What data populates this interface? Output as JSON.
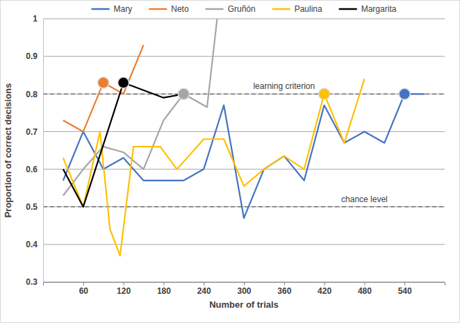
{
  "chart_data": {
    "type": "line",
    "x_label": "Number of trials",
    "y_label": "Proportion of correct decisions",
    "xlim": [
      0,
      600
    ],
    "xticks": [
      60,
      120,
      180,
      240,
      300,
      360,
      420,
      480,
      540
    ],
    "ylim": [
      0.3,
      1
    ],
    "yticks": [
      0.3,
      0.4,
      0.5,
      0.6,
      0.7,
      0.8,
      0.9,
      1
    ],
    "grid": true,
    "legend": "top",
    "series": [
      {
        "name": "Mary",
        "color": "#4472c4",
        "x": [
          30,
          60,
          90,
          120,
          150,
          180,
          210,
          240,
          270,
          300,
          330,
          360,
          390,
          420,
          450,
          480,
          510,
          540,
          570
        ],
        "values": [
          0.57,
          0.7,
          0.6,
          0.63,
          0.57,
          0.57,
          0.57,
          0.6,
          0.77,
          0.47,
          0.6,
          0.635,
          0.57,
          0.77,
          0.67,
          0.7,
          0.67,
          0.8,
          0.8
        ],
        "criterion": {
          "x": 540,
          "y": 0.8
        }
      },
      {
        "name": "Neto",
        "color": "#ed7d31",
        "x": [
          30,
          60,
          90,
          120,
          150
        ],
        "values": [
          0.73,
          0.7,
          0.83,
          0.8,
          0.93
        ],
        "criterion": {
          "x": 90,
          "y": 0.83
        }
      },
      {
        "name": "Gruñón",
        "color": "#a5a5a5",
        "x": [
          30,
          60,
          90,
          120,
          150,
          180,
          210,
          245,
          260
        ],
        "values": [
          0.53,
          0.6,
          0.66,
          0.645,
          0.6,
          0.73,
          0.8,
          0.765,
          1.0
        ],
        "criterion": {
          "x": 210,
          "y": 0.8
        }
      },
      {
        "name": "Paulina",
        "color": "#ffc000",
        "x": [
          30,
          60,
          85,
          100,
          115,
          135,
          175,
          200,
          240,
          270,
          300,
          330,
          360,
          390,
          420,
          450,
          480
        ],
        "values": [
          0.63,
          0.5,
          0.7,
          0.44,
          0.37,
          0.66,
          0.66,
          0.6,
          0.68,
          0.68,
          0.555,
          0.6,
          0.635,
          0.6,
          0.8,
          0.67,
          0.84
        ],
        "criterion": {
          "x": 420,
          "y": 0.8
        }
      },
      {
        "name": "Margarita",
        "color": "#000000",
        "x": [
          30,
          60,
          120,
          180,
          210
        ],
        "values": [
          0.6,
          0.5,
          0.83,
          0.79,
          0.8
        ],
        "criterion": {
          "x": 120,
          "y": 0.83
        }
      }
    ],
    "reference_lines": [
      {
        "y": 0.8,
        "label": "learning criterion"
      },
      {
        "y": 0.5,
        "label": "chance level"
      }
    ]
  }
}
